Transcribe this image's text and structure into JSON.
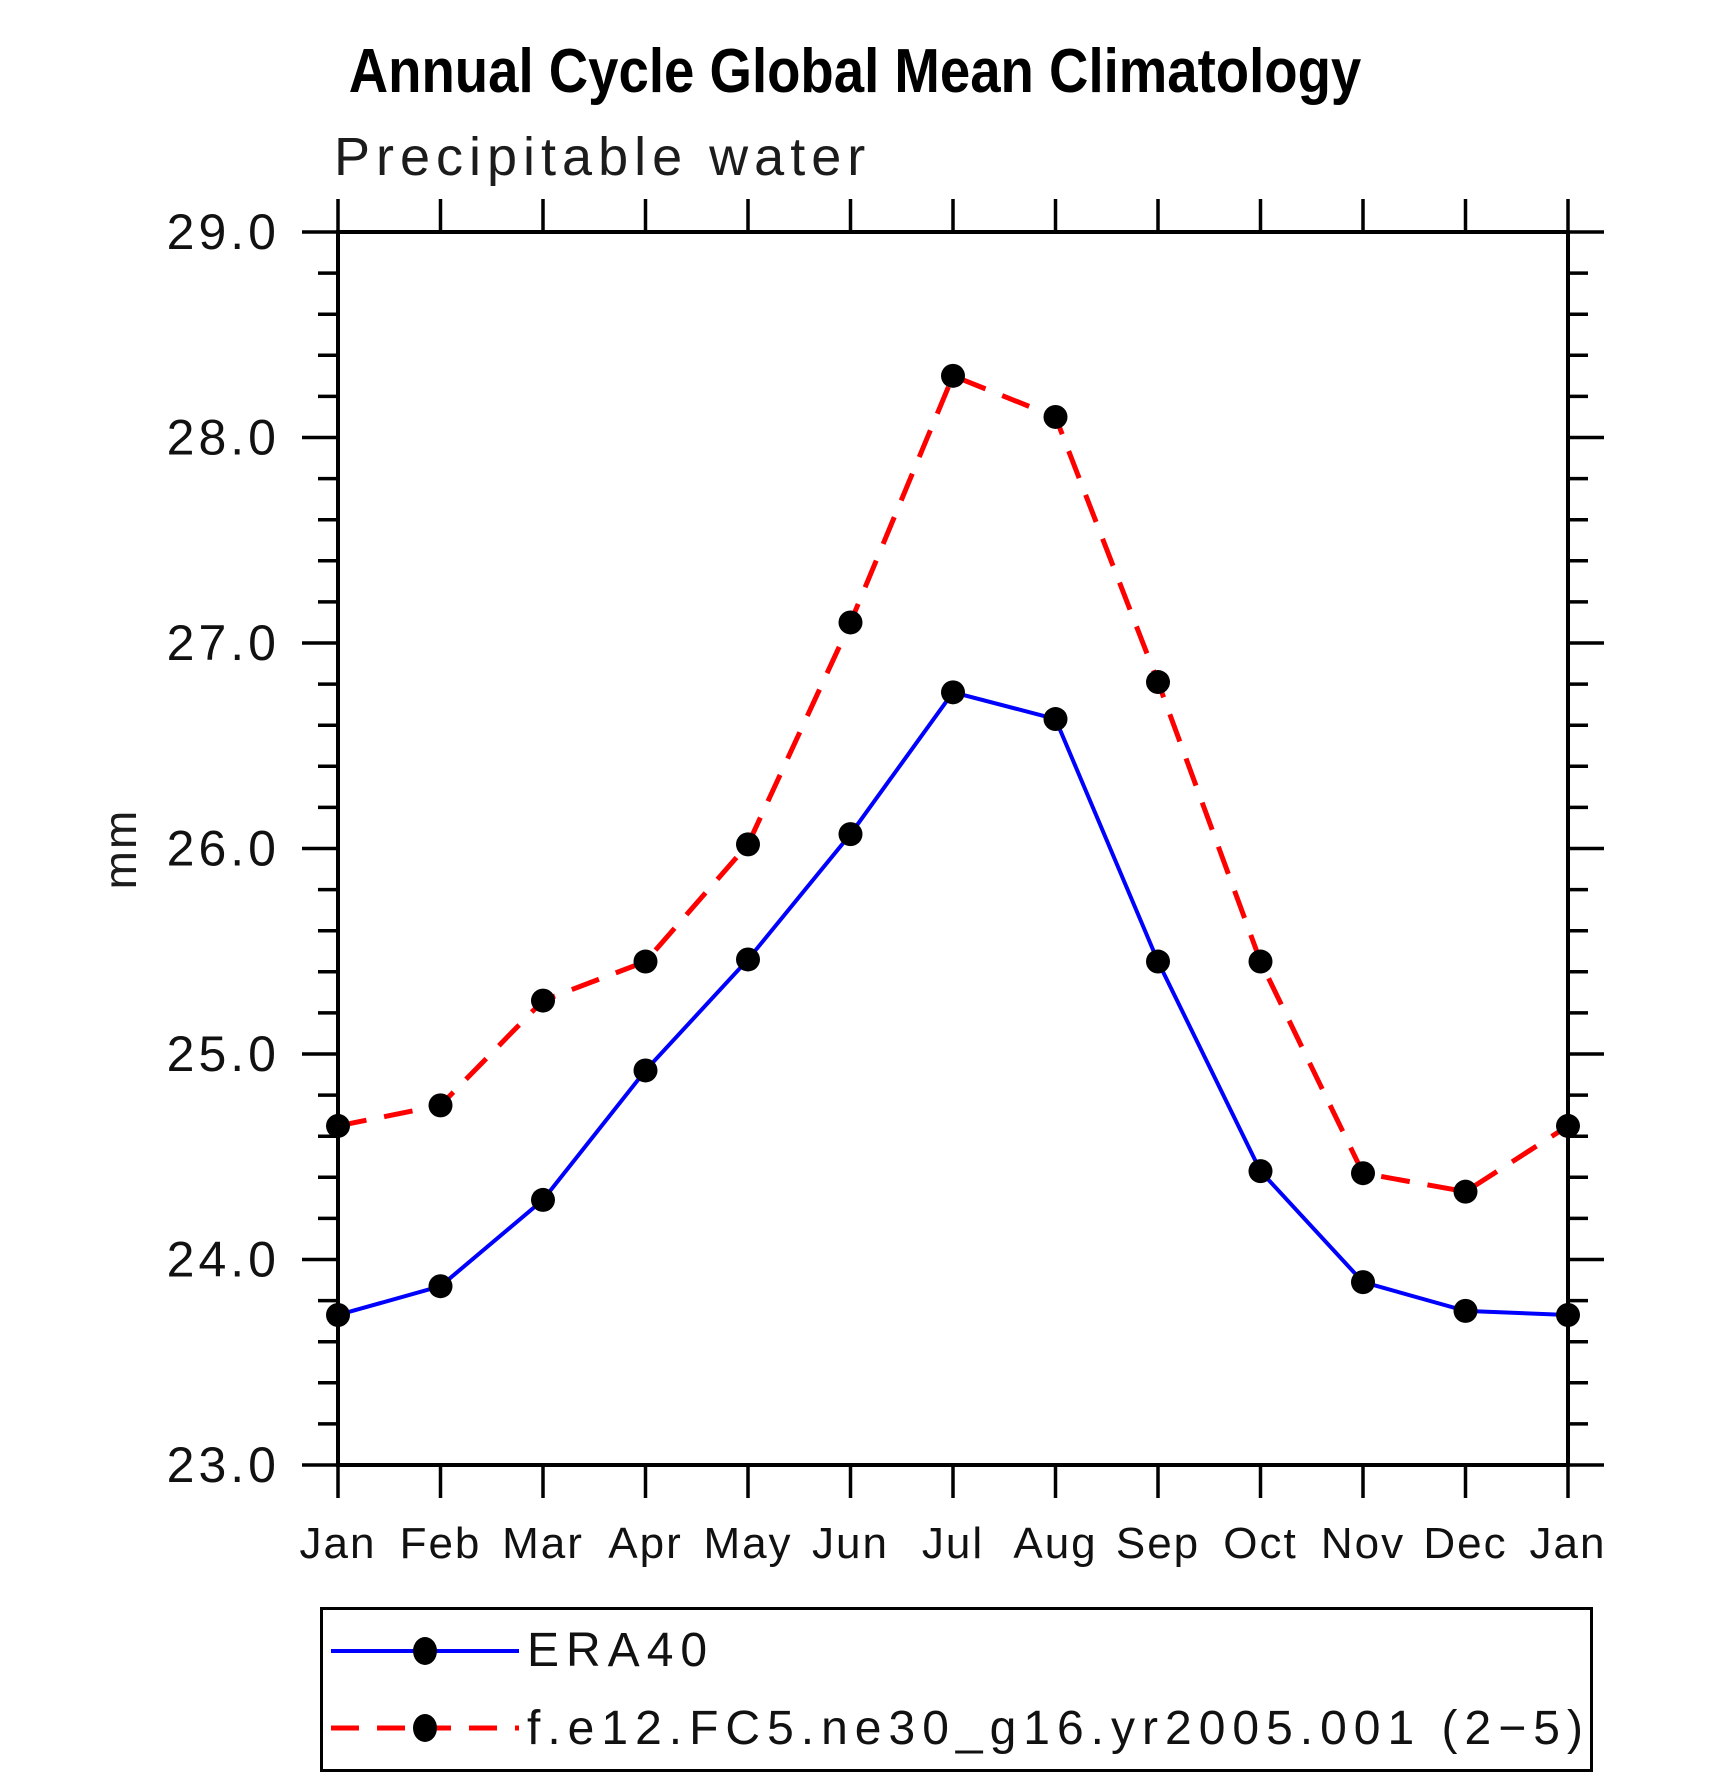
{
  "chart_data": {
    "type": "line",
    "title": "Annual Cycle Global Mean Climatology",
    "subtitle": "Precipitable water",
    "ylabel": "mm",
    "xlabel": "",
    "x_categories": [
      "Jan",
      "Feb",
      "Mar",
      "Apr",
      "May",
      "Jun",
      "Jul",
      "Aug",
      "Sep",
      "Oct",
      "Nov",
      "Dec",
      "Jan"
    ],
    "ylim": [
      23.0,
      29.0
    ],
    "ytick_major_step": 1.0,
    "ytick_minor_step": 0.2,
    "grid": false,
    "legend_position": "bottom",
    "axis_color": "#000000",
    "series": [
      {
        "name": "ERA40",
        "color": "#0000ff",
        "line_style": "solid",
        "marker": "circle",
        "marker_color": "#000000",
        "values": [
          23.73,
          23.87,
          24.29,
          24.92,
          25.46,
          26.07,
          26.76,
          26.63,
          25.45,
          24.43,
          23.89,
          23.75,
          23.73
        ]
      },
      {
        "name": "f.e12.FC5.ne30_g16.yr2005.001 (2−5)",
        "color": "#ff0000",
        "line_style": "dashed",
        "marker": "circle",
        "marker_color": "#000000",
        "values": [
          24.65,
          24.75,
          25.26,
          25.45,
          26.02,
          27.1,
          28.3,
          28.1,
          26.81,
          25.45,
          24.42,
          24.33,
          24.65
        ]
      }
    ]
  }
}
